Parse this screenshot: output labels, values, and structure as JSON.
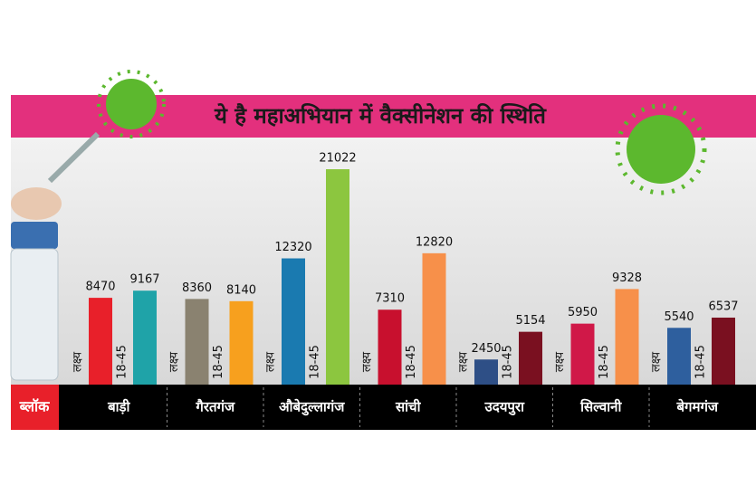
{
  "chart_data": {
    "type": "bar",
    "title": "ये है महाअभियान में वैक्सीनेशन की स्थिति",
    "x_label": "ब्लॉक",
    "categories": [
      "बाड़ी",
      "गैरतगंज",
      "औबेदुल्लागंज",
      "सांची",
      "उदयपुरा",
      "सिल्वानी",
      "बेगमगंज"
    ],
    "series": [
      {
        "name": "लक्ष्य",
        "values": [
          8470,
          8360,
          12320,
          7310,
          2450,
          5950,
          5540
        ],
        "colors": [
          "#e8202a",
          "#8a8270",
          "#1a7ab0",
          "#c8102e",
          "#2e4f86",
          "#d01848",
          "#2e5f9e"
        ]
      },
      {
        "name": "18-45",
        "values": [
          9167,
          8140,
          21022,
          12820,
          5154,
          9328,
          6537
        ],
        "colors": [
          "#1fa3a8",
          "#f7a01e",
          "#8cc63f",
          "#f7904a",
          "#7a1020",
          "#f7904a",
          "#7a1020"
        ]
      }
    ]
  }
}
